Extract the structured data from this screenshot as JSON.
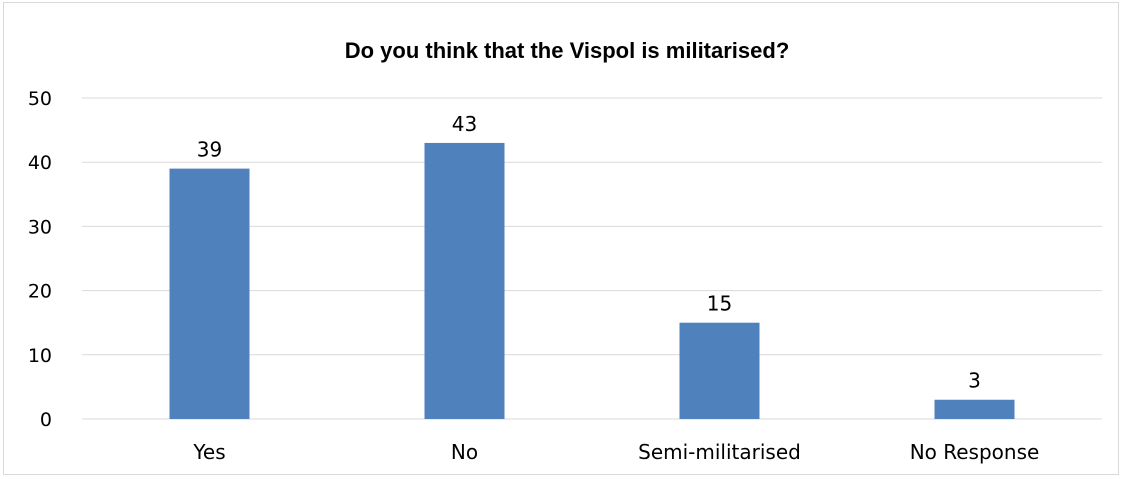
{
  "chart_data": {
    "type": "bar",
    "title": "Do you think that the Vispol is militarised?",
    "categories": [
      "Yes",
      "No",
      "Semi-militarised",
      "No Response"
    ],
    "values": [
      39,
      43,
      15,
      3
    ],
    "data_labels": [
      "39",
      "43",
      "15",
      "3"
    ],
    "ylim": [
      0,
      50
    ],
    "yticks": [
      0,
      10,
      20,
      30,
      40,
      50
    ],
    "ytick_labels": [
      "0",
      "10",
      "20",
      "30",
      "40",
      "50"
    ],
    "xlabel": "",
    "ylabel": "",
    "grid": true,
    "legend": "none",
    "bar_color": "#4f81bd",
    "grid_color": "#d9d9d9"
  }
}
